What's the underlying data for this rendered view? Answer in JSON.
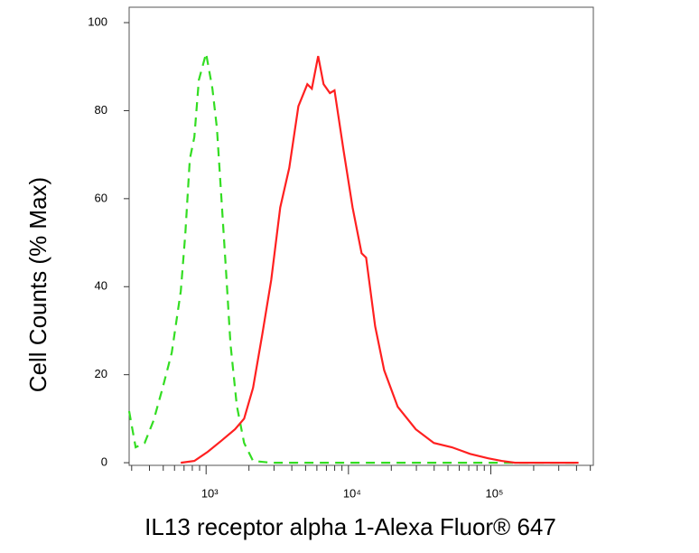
{
  "chart_data": {
    "type": "line",
    "xlabel": "IL13 receptor alpha 1-Alexa Fluor® 647",
    "ylabel": "Cell Counts (% Max)",
    "xscale": "log",
    "xlim": [
      288,
      525000
    ],
    "ylim": [
      -0.6,
      103.5
    ],
    "xticks": [
      {
        "value": 1000,
        "label": "10³"
      },
      {
        "value": 10000,
        "label": "10⁴"
      },
      {
        "value": 100000,
        "label": "10⁵"
      }
    ],
    "yticks": [
      0,
      20,
      40,
      60,
      80,
      100
    ],
    "grid": false,
    "series": [
      {
        "color": "#33dd22",
        "dashed": true,
        "x": [
          288,
          320,
          370,
          428,
          495,
          574,
          664,
          714,
          769,
          827,
          889,
          1000,
          1107,
          1191,
          1282,
          1380,
          1484,
          1643,
          1848,
          2138,
          2864,
          12360,
          53300,
          413000
        ],
        "values": [
          11.7,
          3.5,
          4.5,
          9.6,
          17,
          25,
          39,
          52,
          69,
          74,
          87,
          93,
          85,
          76,
          60,
          43.5,
          27,
          13,
          4.5,
          0.4,
          0,
          0,
          0,
          0
        ]
      },
      {
        "color": "#ff2020",
        "dashed": false,
        "x": [
          664,
          827,
          1030,
          1282,
          1596,
          1848,
          2138,
          2478,
          2864,
          3318,
          3839,
          4446,
          5140,
          5530,
          6126,
          6685,
          7410,
          7975,
          9230,
          10680,
          12360,
          13300,
          15390,
          17820,
          22190,
          29720,
          39810,
          53300,
          71450,
          95700,
          119000,
          148000,
          413000
        ],
        "values": [
          0,
          0.4,
          2.5,
          5,
          7.6,
          10,
          17,
          29,
          41.5,
          58,
          67,
          81,
          86,
          85,
          92.4,
          86,
          84,
          84.6,
          71,
          58,
          47.6,
          46.6,
          31,
          21,
          12.7,
          7.6,
          4.5,
          3.5,
          2,
          1,
          0.4,
          0,
          0
        ]
      }
    ]
  }
}
